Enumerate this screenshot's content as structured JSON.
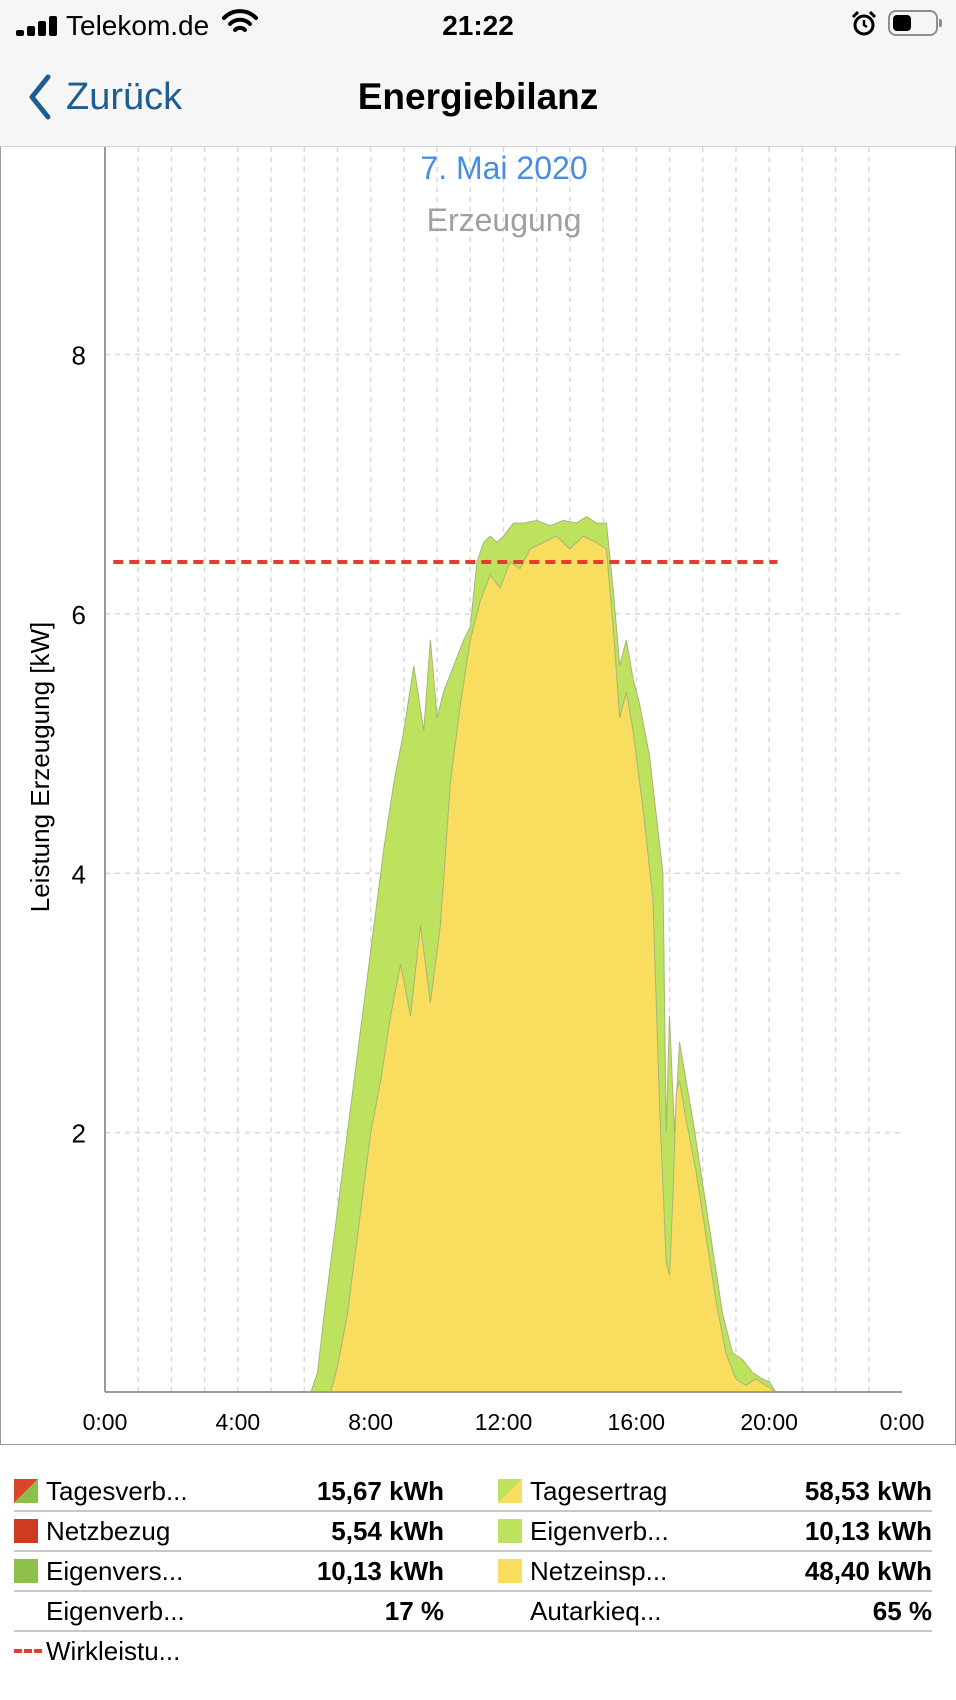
{
  "status_bar": {
    "carrier": "Telekom.de",
    "time": "21:22"
  },
  "nav": {
    "back_label": "Zurück",
    "title": "Energiebilanz"
  },
  "chart_data": {
    "type": "area",
    "title": "7. Mai 2020",
    "subtitle": "Erzeugung",
    "ylabel": "Leistung Erzeugung [kW]",
    "xlabel": "",
    "x_ticks": [
      "0:00",
      "4:00",
      "8:00",
      "12:00",
      "16:00",
      "20:00",
      "0:00"
    ],
    "y_ticks": [
      "2",
      "4",
      "6",
      "8"
    ],
    "xlim": [
      0,
      24
    ],
    "ylim": [
      0,
      9.6
    ],
    "grid": true,
    "colors": {
      "green": "#bde25d",
      "yellow": "#f8dd5e",
      "limit": "#e23d2e"
    },
    "limit_line": {
      "y": 6.4,
      "x_start": 0.25,
      "x_end": 20.25
    },
    "series": [
      {
        "name": "Eigenverb...",
        "color": "#bde25d",
        "x": [
          6.2,
          6.4,
          6.6,
          6.8,
          7.0,
          7.3,
          7.6,
          8.0,
          8.4,
          8.7,
          9.0,
          9.3,
          9.6,
          9.8,
          10.0,
          10.2,
          10.5,
          10.8,
          11.0,
          11.2,
          11.4,
          11.6,
          11.8,
          12.0,
          12.3,
          12.6,
          13.0,
          13.4,
          13.8,
          14.2,
          14.5,
          14.8,
          15.1,
          15.3,
          15.5,
          15.7,
          15.9,
          16.1,
          16.4,
          16.8,
          16.9,
          17.0,
          17.15,
          17.3,
          17.5,
          17.7,
          18.0,
          18.3,
          18.6,
          18.9,
          19.2,
          19.5,
          19.8,
          20.0,
          20.2
        ],
        "y": [
          0.0,
          0.15,
          0.6,
          1.0,
          1.4,
          2.0,
          2.6,
          3.4,
          4.2,
          4.7,
          5.1,
          5.6,
          5.1,
          5.8,
          5.2,
          5.4,
          5.6,
          5.8,
          5.9,
          6.4,
          6.55,
          6.6,
          6.55,
          6.6,
          6.7,
          6.7,
          6.72,
          6.68,
          6.72,
          6.7,
          6.75,
          6.7,
          6.7,
          6.2,
          5.6,
          5.8,
          5.5,
          5.3,
          4.9,
          4.0,
          2.0,
          2.9,
          2.0,
          2.7,
          2.4,
          2.1,
          1.6,
          1.1,
          0.6,
          0.3,
          0.25,
          0.15,
          0.1,
          0.08,
          0.0
        ]
      },
      {
        "name": "Netzeinsp...",
        "color": "#f8dd5e",
        "x": [
          6.8,
          7.0,
          7.3,
          7.6,
          8.0,
          8.3,
          8.6,
          8.9,
          9.2,
          9.5,
          9.8,
          10.1,
          10.4,
          10.7,
          11.0,
          11.3,
          11.6,
          11.9,
          12.2,
          12.5,
          12.8,
          13.2,
          13.6,
          14.0,
          14.4,
          14.8,
          15.1,
          15.3,
          15.5,
          15.7,
          15.9,
          16.2,
          16.5,
          16.7,
          16.9,
          17.0,
          17.1,
          17.2,
          17.3,
          17.5,
          17.8,
          18.1,
          18.4,
          18.7,
          19.0,
          19.3,
          19.6,
          19.9,
          20.2
        ],
        "y": [
          0.0,
          0.2,
          0.6,
          1.2,
          2.0,
          2.4,
          2.9,
          3.3,
          2.9,
          3.6,
          3.0,
          3.6,
          4.7,
          5.3,
          5.8,
          6.1,
          6.3,
          6.2,
          6.4,
          6.35,
          6.5,
          6.55,
          6.6,
          6.5,
          6.6,
          6.55,
          6.5,
          5.9,
          5.2,
          5.4,
          5.1,
          4.5,
          3.8,
          2.2,
          1.0,
          0.9,
          1.5,
          2.3,
          2.4,
          2.1,
          1.7,
          1.2,
          0.7,
          0.3,
          0.1,
          0.05,
          0.1,
          0.05,
          0.0
        ]
      }
    ]
  },
  "legend": {
    "rows": [
      {
        "left": {
          "label": "Tagesverb...",
          "value": "15,67 kWh",
          "swatch": "diag-red-green"
        },
        "right": {
          "label": "Tagesertrag",
          "value": "58,53 kWh",
          "swatch": "diag-green-yellow"
        }
      },
      {
        "left": {
          "label": "Netzbezug",
          "value": "5,54 kWh",
          "swatch": "red"
        },
        "right": {
          "label": "Eigenverb...",
          "value": "10,13 kWh",
          "swatch": "light-green"
        }
      },
      {
        "left": {
          "label": "Eigenvers...",
          "value": "10,13 kWh",
          "swatch": "green"
        },
        "right": {
          "label": "Netzeinsp...",
          "value": "48,40 kWh",
          "swatch": "yellow"
        }
      },
      {
        "left": {
          "label": "Eigenverb...",
          "value": "17 %",
          "swatch": ""
        },
        "right": {
          "label": "Autarkieq...",
          "value": "65 %",
          "swatch": ""
        }
      }
    ],
    "limit_label": "Wirkleistu..."
  }
}
